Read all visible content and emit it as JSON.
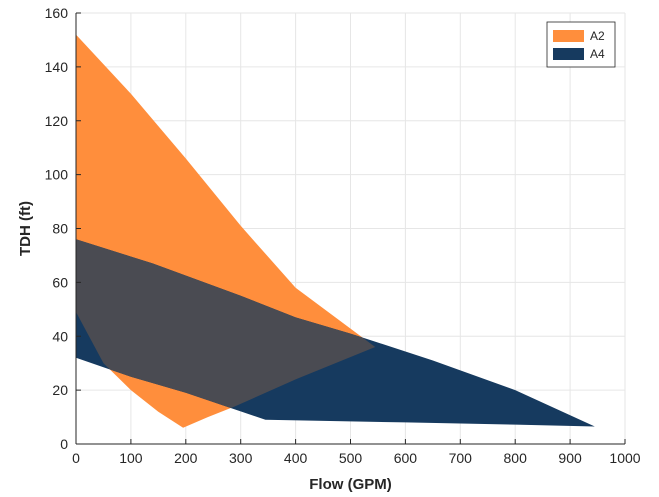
{
  "chart_data": {
    "type": "area",
    "title": "",
    "xlabel": "Flow (GPM)",
    "ylabel": "TDH (ft)",
    "xlim": [
      0,
      1000
    ],
    "ylim": [
      0,
      160
    ],
    "xticks": [
      0,
      100,
      200,
      300,
      400,
      500,
      600,
      700,
      800,
      900,
      1000
    ],
    "yticks": [
      0,
      20,
      40,
      60,
      80,
      100,
      120,
      140,
      160
    ],
    "grid": true,
    "legend_position": "top-right",
    "series": [
      {
        "name": "A2",
        "color": "#ff8e3c",
        "polygon": [
          [
            0,
            152
          ],
          [
            100,
            130
          ],
          [
            200,
            106
          ],
          [
            300,
            81
          ],
          [
            400,
            58
          ],
          [
            545,
            36
          ],
          [
            400,
            24
          ],
          [
            290,
            14
          ],
          [
            240,
            10
          ],
          [
            195,
            6
          ],
          [
            150,
            12
          ],
          [
            100,
            20
          ],
          [
            50,
            30
          ],
          [
            0,
            49
          ]
        ]
      },
      {
        "name": "A4",
        "color": "#163a5f",
        "polygon": [
          [
            0,
            76
          ],
          [
            140,
            67
          ],
          [
            300,
            55
          ],
          [
            400,
            47
          ],
          [
            500,
            41
          ],
          [
            650,
            31
          ],
          [
            800,
            20
          ],
          [
            945,
            6.5
          ],
          [
            800,
            7.2
          ],
          [
            600,
            8
          ],
          [
            345,
            9
          ],
          [
            200,
            19
          ],
          [
            100,
            25
          ],
          [
            0,
            32
          ]
        ]
      }
    ]
  },
  "colors": {
    "A2": "#ff8e3c",
    "A4": "#163a5f",
    "overlap": "#4a4b52"
  }
}
